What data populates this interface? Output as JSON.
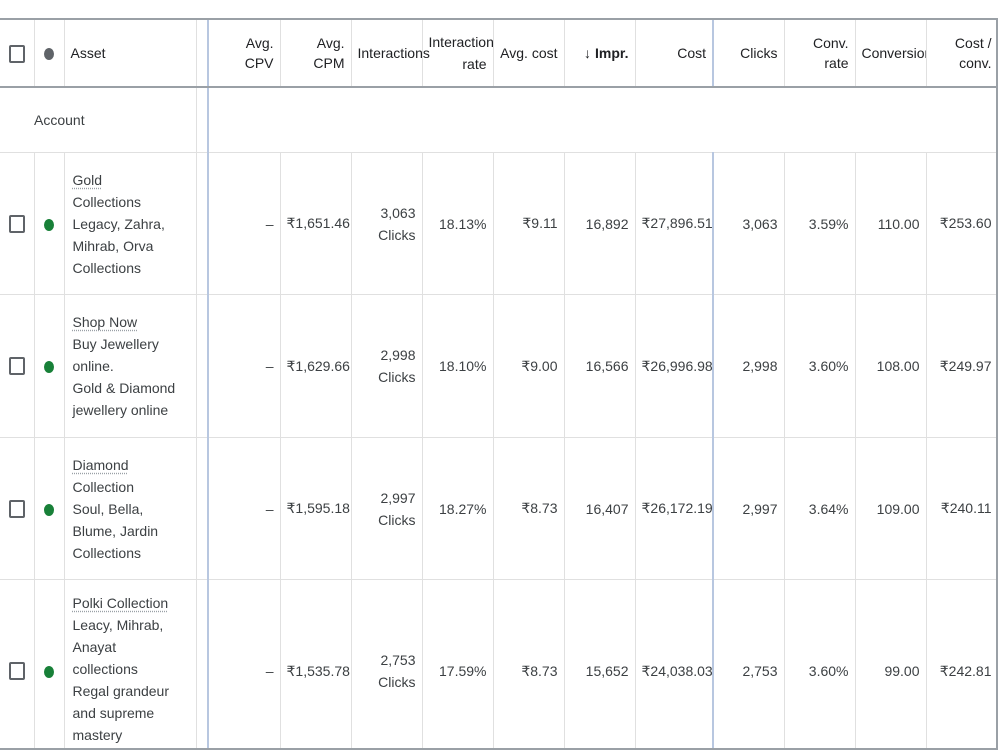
{
  "columns": {
    "asset": "Asset",
    "avg_cpv": "Avg. CPV",
    "avg_cpm": "Avg. CPM",
    "interactions": "Interactions",
    "interaction_rate_1": "Interaction",
    "interaction_rate_2": "rate",
    "avg_cost": "Avg. cost",
    "impr_arrow": "↓",
    "impr": "Impr.",
    "cost": "Cost",
    "clicks": "Clicks",
    "conv_rate": "Conv. rate",
    "conversions": "Conversions",
    "cost_per_conv": "Cost / conv."
  },
  "account_label": "Account",
  "colors": {
    "status_enabled": "#188038",
    "status_header": "#5f6368",
    "divider": "#b8c7e0"
  },
  "rows": [
    {
      "asset_lines": [
        "Gold",
        "Collections",
        "Legacy, Zahra,",
        "Mihrab, Orva",
        "Collections"
      ],
      "avg_cpv": "–",
      "avg_cpm": "₹1,651.46",
      "interactions": "3,063",
      "interactions_unit": "Clicks",
      "interaction_rate": "18.13%",
      "avg_cost": "₹9.11",
      "impr": "16,892",
      "cost": "₹27,896.51",
      "clicks": "3,063",
      "conv_rate": "3.59%",
      "conversions": "110.00",
      "cost_per_conv": "₹253.60"
    },
    {
      "asset_lines": [
        "Shop Now",
        "Buy Jewellery",
        "online.",
        "Gold & Diamond",
        "jewellery online"
      ],
      "avg_cpv": "–",
      "avg_cpm": "₹1,629.66",
      "interactions": "2,998",
      "interactions_unit": "Clicks",
      "interaction_rate": "18.10%",
      "avg_cost": "₹9.00",
      "impr": "16,566",
      "cost": "₹26,996.98",
      "clicks": "2,998",
      "conv_rate": "3.60%",
      "conversions": "108.00",
      "cost_per_conv": "₹249.97"
    },
    {
      "asset_lines": [
        "Diamond",
        "Collection",
        "Soul, Bella,",
        "Blume, Jardin",
        "Collections"
      ],
      "avg_cpv": "–",
      "avg_cpm": "₹1,595.18",
      "interactions": "2,997",
      "interactions_unit": "Clicks",
      "interaction_rate": "18.27%",
      "avg_cost": "₹8.73",
      "impr": "16,407",
      "cost": "₹26,172.19",
      "clicks": "2,997",
      "conv_rate": "3.64%",
      "conversions": "109.00",
      "cost_per_conv": "₹240.11"
    },
    {
      "asset_lines": [
        "Polki Collection",
        "Leacy, Mihrab,",
        "Anayat",
        "collections",
        "Regal grandeur",
        "and supreme",
        "mastery"
      ],
      "avg_cpv": "–",
      "avg_cpm": "₹1,535.78",
      "interactions": "2,753",
      "interactions_unit": "Clicks",
      "interaction_rate": "17.59%",
      "avg_cost": "₹8.73",
      "impr": "15,652",
      "cost": "₹24,038.03",
      "clicks": "2,753",
      "conv_rate": "3.60%",
      "conversions": "99.00",
      "cost_per_conv": "₹242.81"
    }
  ]
}
